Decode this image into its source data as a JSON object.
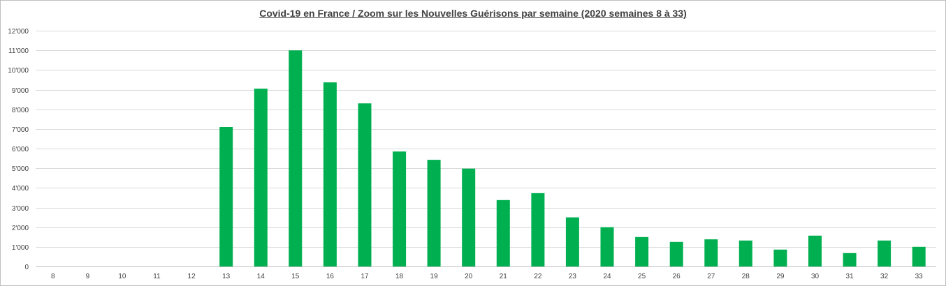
{
  "chart_data": {
    "type": "bar",
    "title": "Covid-19 en France / Zoom  sur les Nouvelles Guérisons par semaine (2020 semaines 8 à 33)",
    "xlabel": "",
    "ylabel": "",
    "categories": [
      "8",
      "9",
      "10",
      "11",
      "12",
      "13",
      "14",
      "15",
      "16",
      "17",
      "18",
      "19",
      "20",
      "21",
      "22",
      "23",
      "24",
      "25",
      "26",
      "27",
      "28",
      "29",
      "30",
      "31",
      "32",
      "33"
    ],
    "values": [
      0,
      0,
      0,
      0,
      0,
      7100,
      9050,
      11000,
      9370,
      8300,
      5850,
      5430,
      4980,
      3380,
      3730,
      2500,
      2000,
      1500,
      1250,
      1380,
      1320,
      860,
      1570,
      680,
      1320,
      1000
    ],
    "ylim": [
      0,
      12000
    ],
    "yticks": [
      0,
      1000,
      2000,
      3000,
      4000,
      5000,
      6000,
      7000,
      8000,
      9000,
      10000,
      11000,
      12000
    ],
    "ytick_labels": [
      "0",
      "1'000",
      "2'000",
      "3'000",
      "4'000",
      "5'000",
      "6'000",
      "7'000",
      "8'000",
      "9'000",
      "10'000",
      "11'000",
      "12'000"
    ],
    "grid": true,
    "legend": "none",
    "colors": {
      "bar": "#00b050",
      "grid": "#d9d9d9",
      "axis": "#bfbfbf",
      "text": "#404040"
    }
  }
}
